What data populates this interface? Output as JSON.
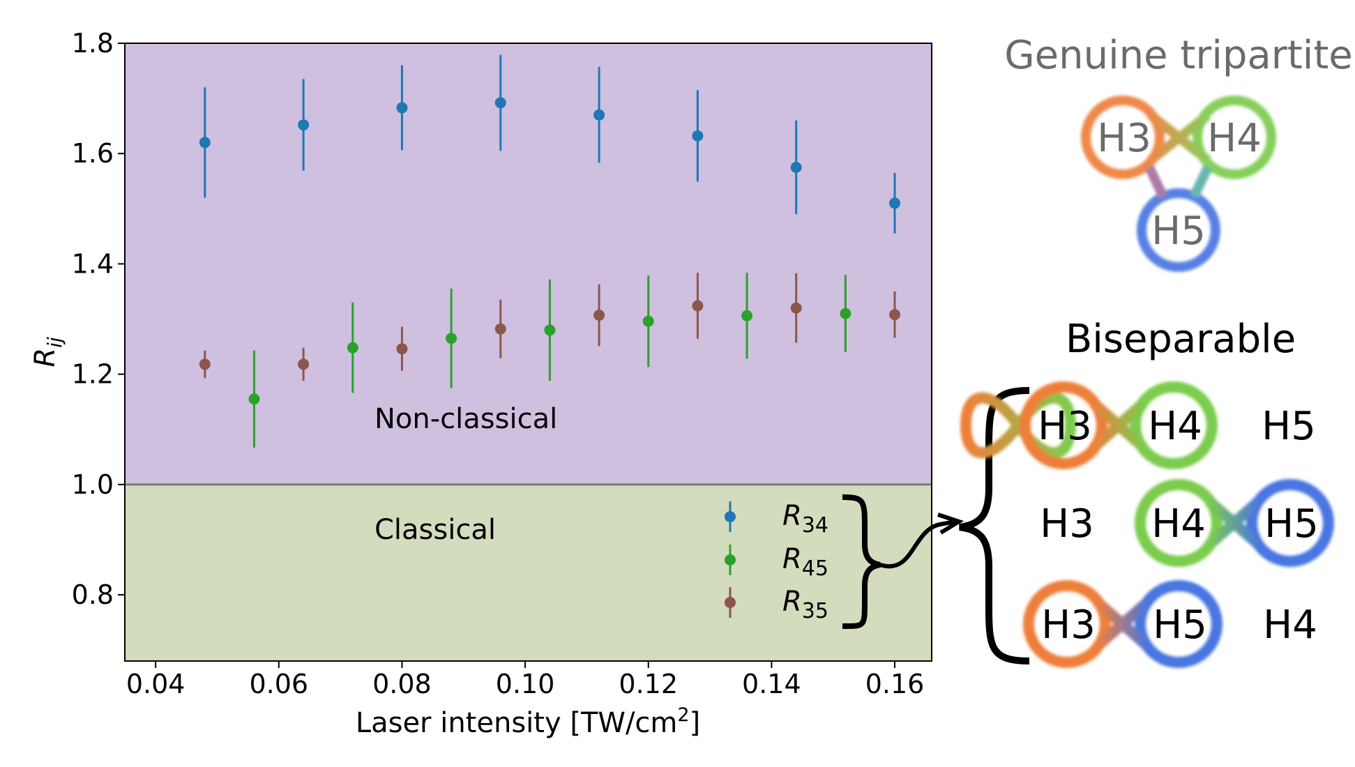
{
  "chart_data": {
    "type": "scatter",
    "xlabel": "Laser intensity [TW/cm",
    "xlabel_sup": "2",
    "xlabel_close": "]",
    "ylabel_main": "R",
    "ylabel_sub": "ij",
    "xlim": [
      0.035,
      0.166
    ],
    "ylim": [
      0.68,
      1.8
    ],
    "xticks": [
      0.04,
      0.06,
      0.08,
      0.1,
      0.12,
      0.14,
      0.16
    ],
    "xtick_labels": [
      "0.04",
      "0.06",
      "0.08",
      "0.10",
      "0.12",
      "0.14",
      "0.16"
    ],
    "yticks": [
      0.8,
      1.0,
      1.2,
      1.4,
      1.6,
      1.8
    ],
    "ytick_labels": [
      "0.8",
      "1.0",
      "1.2",
      "1.4",
      "1.6",
      "1.8"
    ],
    "threshold": 1.0,
    "regions": {
      "upper": {
        "label": "Non-classical",
        "color": "#cfc0e0"
      },
      "lower": {
        "label": "Classical",
        "color": "#d3dcbd"
      }
    },
    "legend_position": "lower-right",
    "series": [
      {
        "name_main": "R",
        "name_sub": "34",
        "color": "#1f77b4",
        "x": [
          0.048,
          0.064,
          0.08,
          0.096,
          0.112,
          0.128,
          0.144,
          0.16
        ],
        "y": [
          1.62,
          1.652,
          1.683,
          1.692,
          1.67,
          1.632,
          1.575,
          1.51
        ],
        "err": [
          0.1,
          0.083,
          0.077,
          0.087,
          0.087,
          0.083,
          0.085,
          0.055
        ]
      },
      {
        "name_main": "R",
        "name_sub": "45",
        "color": "#2ca02c",
        "x": [
          0.056,
          0.072,
          0.088,
          0.104,
          0.12,
          0.136,
          0.152
        ],
        "y": [
          1.155,
          1.248,
          1.265,
          1.28,
          1.296,
          1.306,
          1.31
        ],
        "err": [
          0.088,
          0.082,
          0.09,
          0.092,
          0.083,
          0.078,
          0.07
        ]
      },
      {
        "name_main": "R",
        "name_sub": "35",
        "color": "#8c564b",
        "x": [
          0.048,
          0.064,
          0.08,
          0.096,
          0.112,
          0.128,
          0.144,
          0.16
        ],
        "y": [
          1.218,
          1.218,
          1.246,
          1.282,
          1.307,
          1.324,
          1.32,
          1.308
        ],
        "err": [
          0.025,
          0.03,
          0.04,
          0.053,
          0.056,
          0.06,
          0.063,
          0.042
        ]
      }
    ]
  },
  "diagram": {
    "genuine_title": "Genuine tripartite",
    "biseparable_title": "Biseparable",
    "labels": {
      "h3": "H3",
      "h4": "H4",
      "h5": "H5"
    },
    "colors": {
      "h3": "#ee7f3a",
      "h4": "#7ccc4e",
      "h5": "#4a76e2"
    },
    "biseparable_rows": [
      {
        "pair": [
          "H3",
          "H4"
        ],
        "single": "H5"
      },
      {
        "pair": [
          "H4",
          "H5"
        ],
        "single": "H3"
      },
      {
        "pair": [
          "H3",
          "H5"
        ],
        "single": "H4"
      }
    ]
  }
}
